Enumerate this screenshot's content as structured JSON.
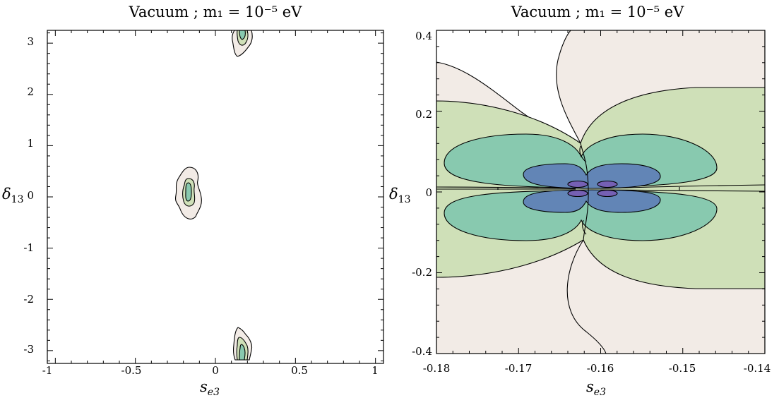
{
  "colors": {
    "level1": "#f2ebe6",
    "level2": "#cfe0b8",
    "level3": "#88c9af",
    "level4": "#6285b6",
    "level5": "#7560b4",
    "line": "#000000"
  },
  "chart_data": [
    {
      "type": "contour",
      "title": "Vacuum ; m₁ = 10⁻⁵ eV",
      "xlabel": "s_e3",
      "ylabel": "δ_13",
      "xlim": [
        -1.05,
        1.05
      ],
      "ylim": [
        -3.25,
        3.25
      ],
      "x_ticks": [
        -1,
        -0.5,
        0,
        0.5,
        1
      ],
      "x_tick_labels": [
        "-1",
        "-0.5",
        "0",
        "0.5",
        "1"
      ],
      "y_ticks": [
        -3,
        -2,
        -1,
        0,
        1,
        2,
        3
      ],
      "y_tick_labels": [
        "-3",
        "-2",
        "-1",
        "0",
        "1",
        "2",
        "3"
      ],
      "regions": [
        {
          "center": [
            -0.16,
            0.0
          ],
          "levels": 3
        },
        {
          "center": [
            0.17,
            2.93
          ],
          "levels": 3
        },
        {
          "center": [
            0.17,
            -2.95
          ],
          "levels": 3
        }
      ]
    },
    {
      "type": "contour",
      "title": "Vacuum ; m₁ = 10⁻⁵ eV",
      "xlabel": "s_e3",
      "ylabel": "δ_13",
      "xlim": [
        -0.18,
        -0.14
      ],
      "ylim": [
        -0.4,
        0.4
      ],
      "x_ticks": [
        -0.18,
        -0.17,
        -0.16,
        -0.15,
        -0.14
      ],
      "x_tick_labels": [
        "-0.18",
        "-0.17",
        "-0.16",
        "-0.15",
        "-0.14"
      ],
      "y_ticks": [
        -0.4,
        -0.2,
        0,
        0.2,
        0.4
      ],
      "y_tick_labels": [
        "-0.4",
        "-0.2",
        "0",
        "0.2",
        "0.4"
      ],
      "center": [
        -0.1615,
        0.015
      ],
      "levels": 5
    }
  ]
}
